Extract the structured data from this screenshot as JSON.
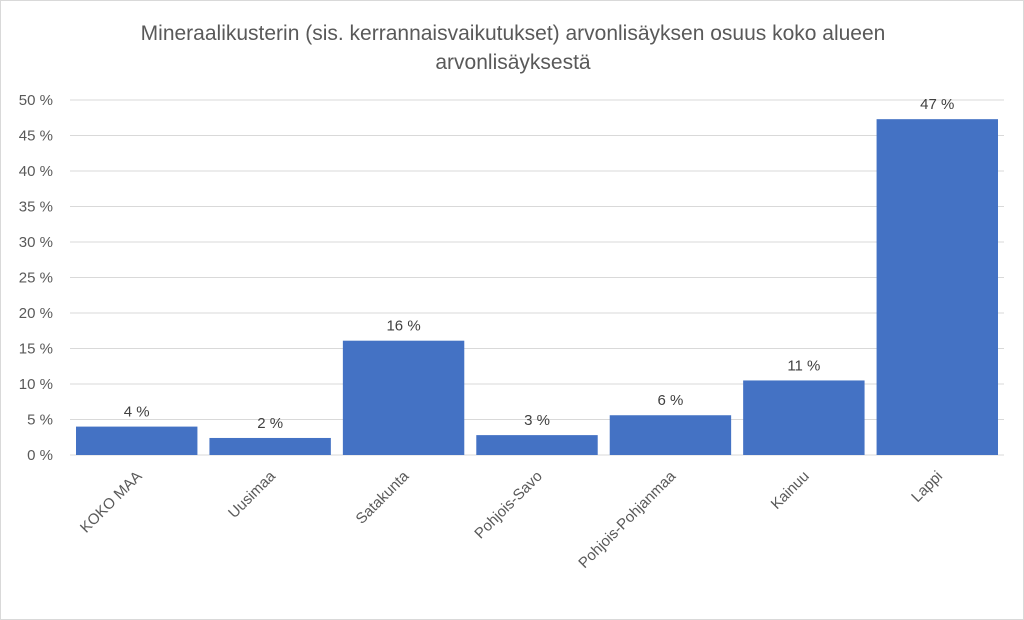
{
  "chart_data": {
    "type": "bar",
    "title": "Mineraalikusterin (sis. kerrannaisvaikutukset) arvonlisäyksen osuus koko alueen arvonlisäyksestä",
    "xlabel": "",
    "ylabel": "",
    "categories": [
      "KOKO MAA",
      "Uusimaa",
      "Satakunta",
      "Pohjois-Savo",
      "Pohjois-Pohjanmaa",
      "Kainuu",
      "Lappi"
    ],
    "values": [
      4.0,
      2.4,
      16.1,
      2.8,
      5.6,
      10.5,
      47.3
    ],
    "data_labels": [
      "4 %",
      "2 %",
      "16 %",
      "3 %",
      "6 %",
      "11 %",
      "47 %"
    ],
    "ylim": [
      0,
      50
    ],
    "yticks": [
      0,
      5,
      10,
      15,
      20,
      25,
      30,
      35,
      40,
      45,
      50
    ],
    "ytick_labels": [
      "0 %",
      "5 %",
      "10 %",
      "15 %",
      "20 %",
      "25 %",
      "30 %",
      "35 %",
      "40 %",
      "45 %",
      "50 %"
    ],
    "grid": true,
    "legend": "none",
    "bar_color": "#4472c4",
    "grid_color": "#d9d9d9"
  }
}
